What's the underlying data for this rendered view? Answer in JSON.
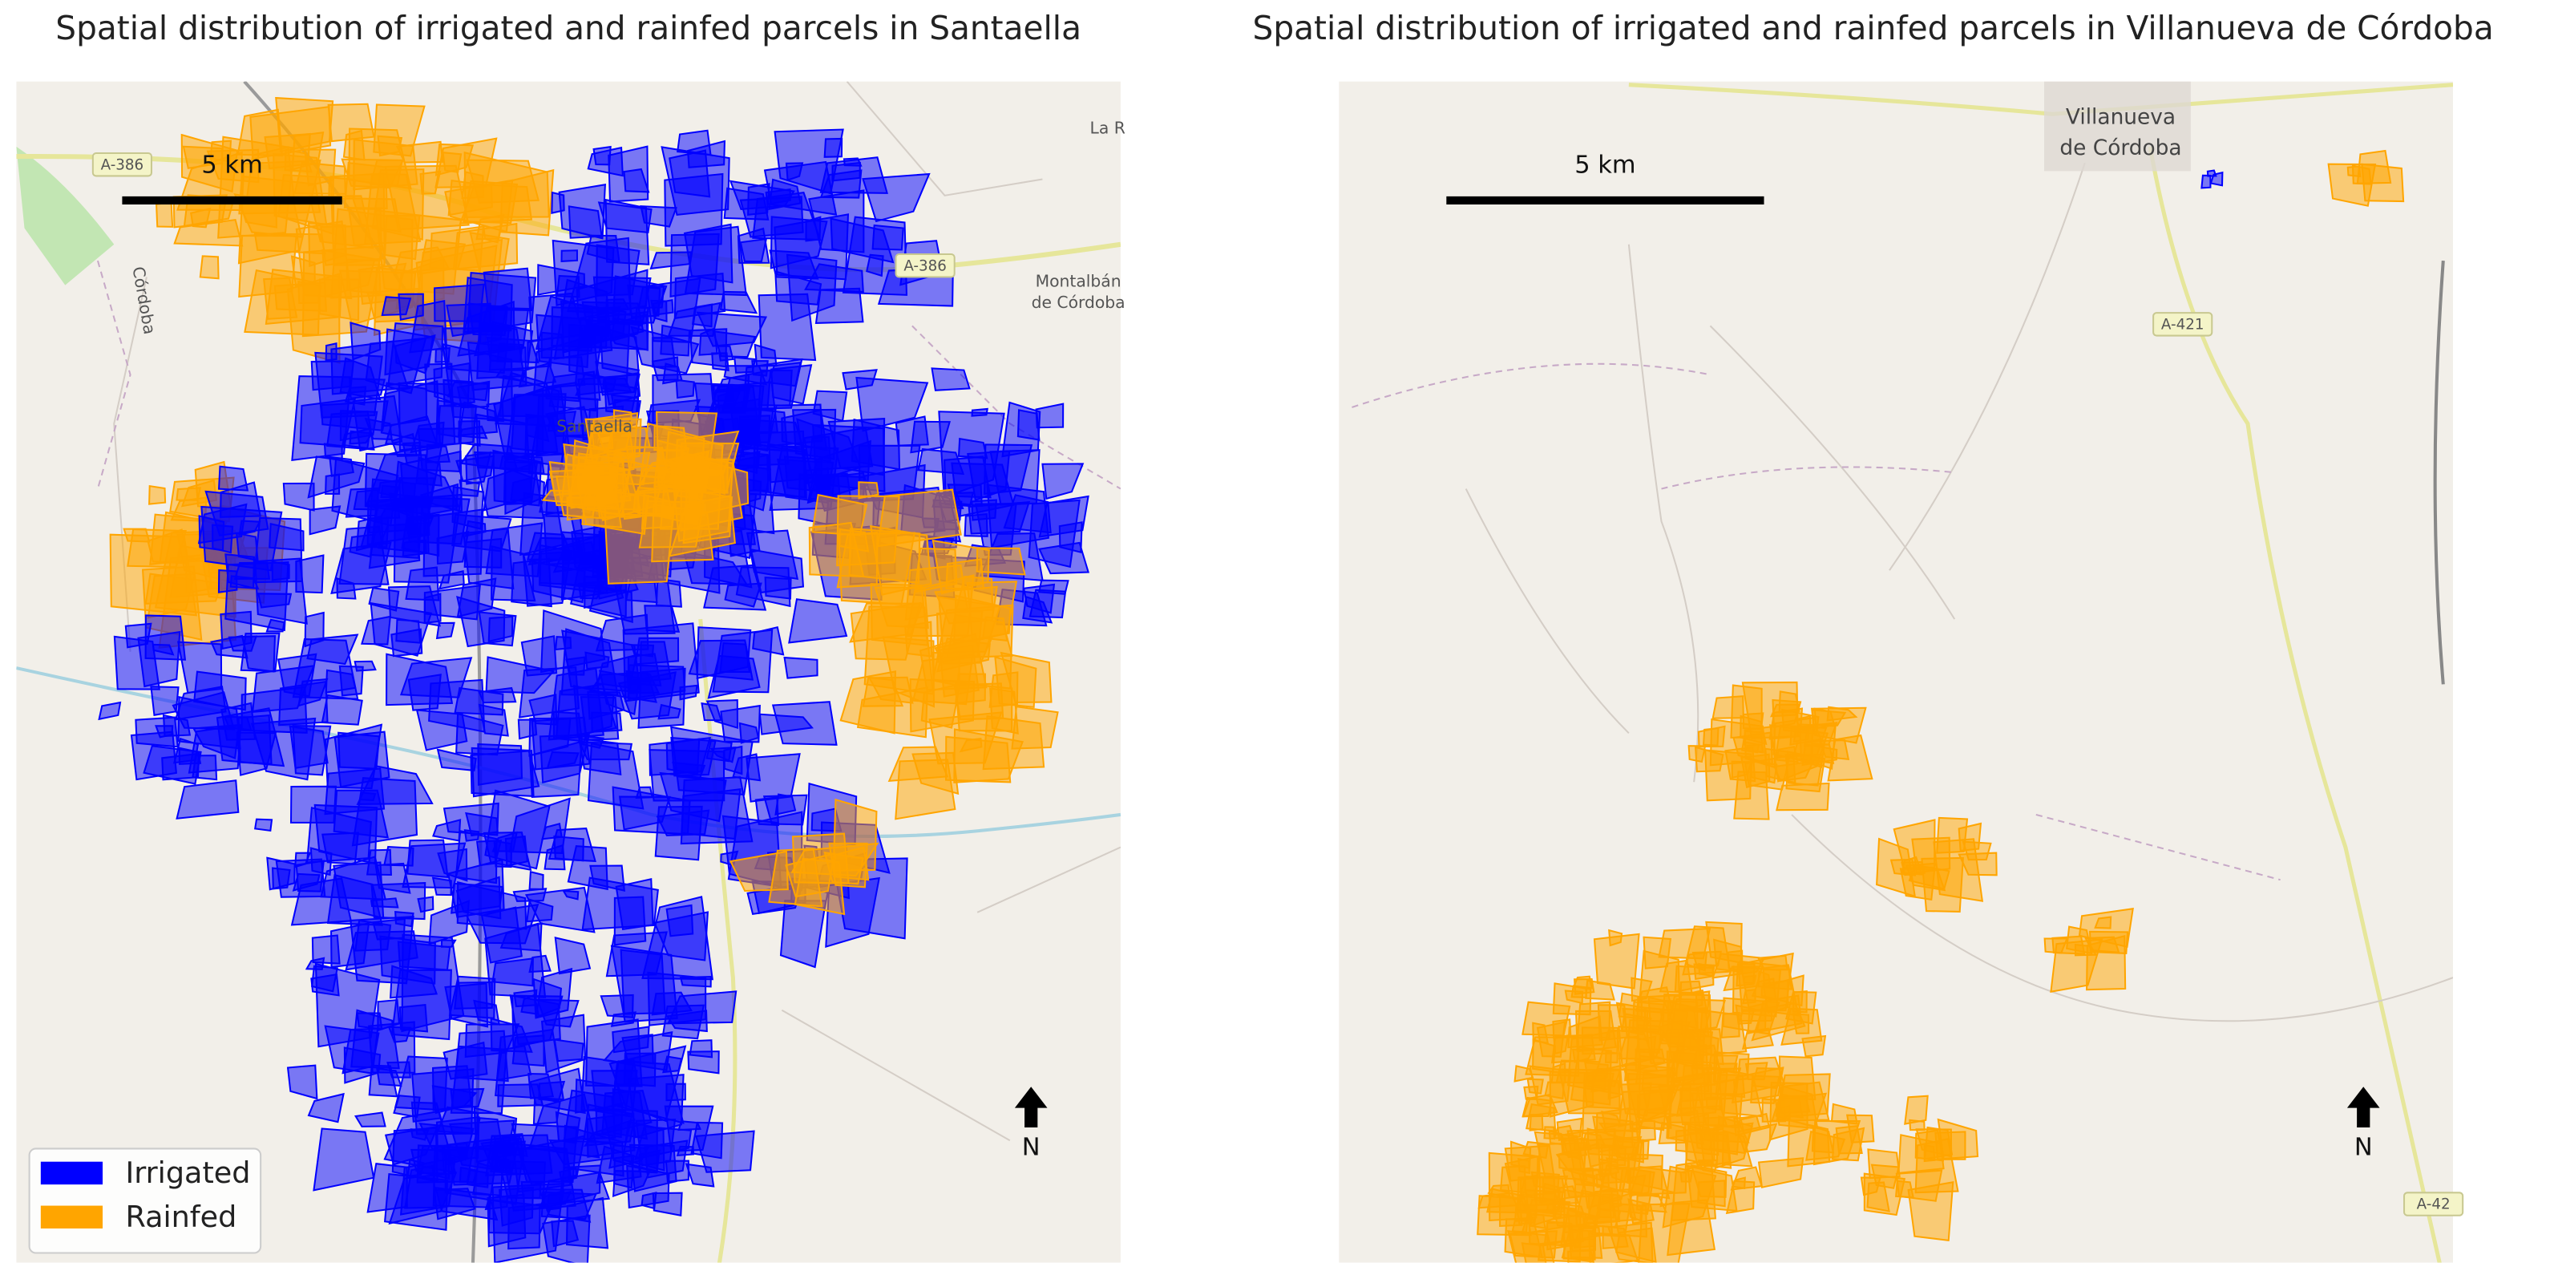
{
  "panels": [
    {
      "title": "Spatial distribution of irrigated and rainfed parcels in Santaella",
      "scale_label": "5 km",
      "north_label": "N",
      "map_labels": [
        "A-386",
        "A-386",
        "Montalbán",
        "de Córdoba",
        "La R",
        "Córdoba",
        "Santaella"
      ]
    },
    {
      "title": "Spatial distribution of irrigated and rainfed parcels in Villanueva de Córdoba",
      "scale_label": "5 km",
      "north_label": "N",
      "map_labels": [
        "Villanueva",
        "de Córdoba",
        "A-421",
        "A-42"
      ]
    }
  ],
  "legend": {
    "items": [
      {
        "name": "Irrigated",
        "color": "#0000ff"
      },
      {
        "name": "Rainfed",
        "color": "#ffa500"
      }
    ]
  }
}
